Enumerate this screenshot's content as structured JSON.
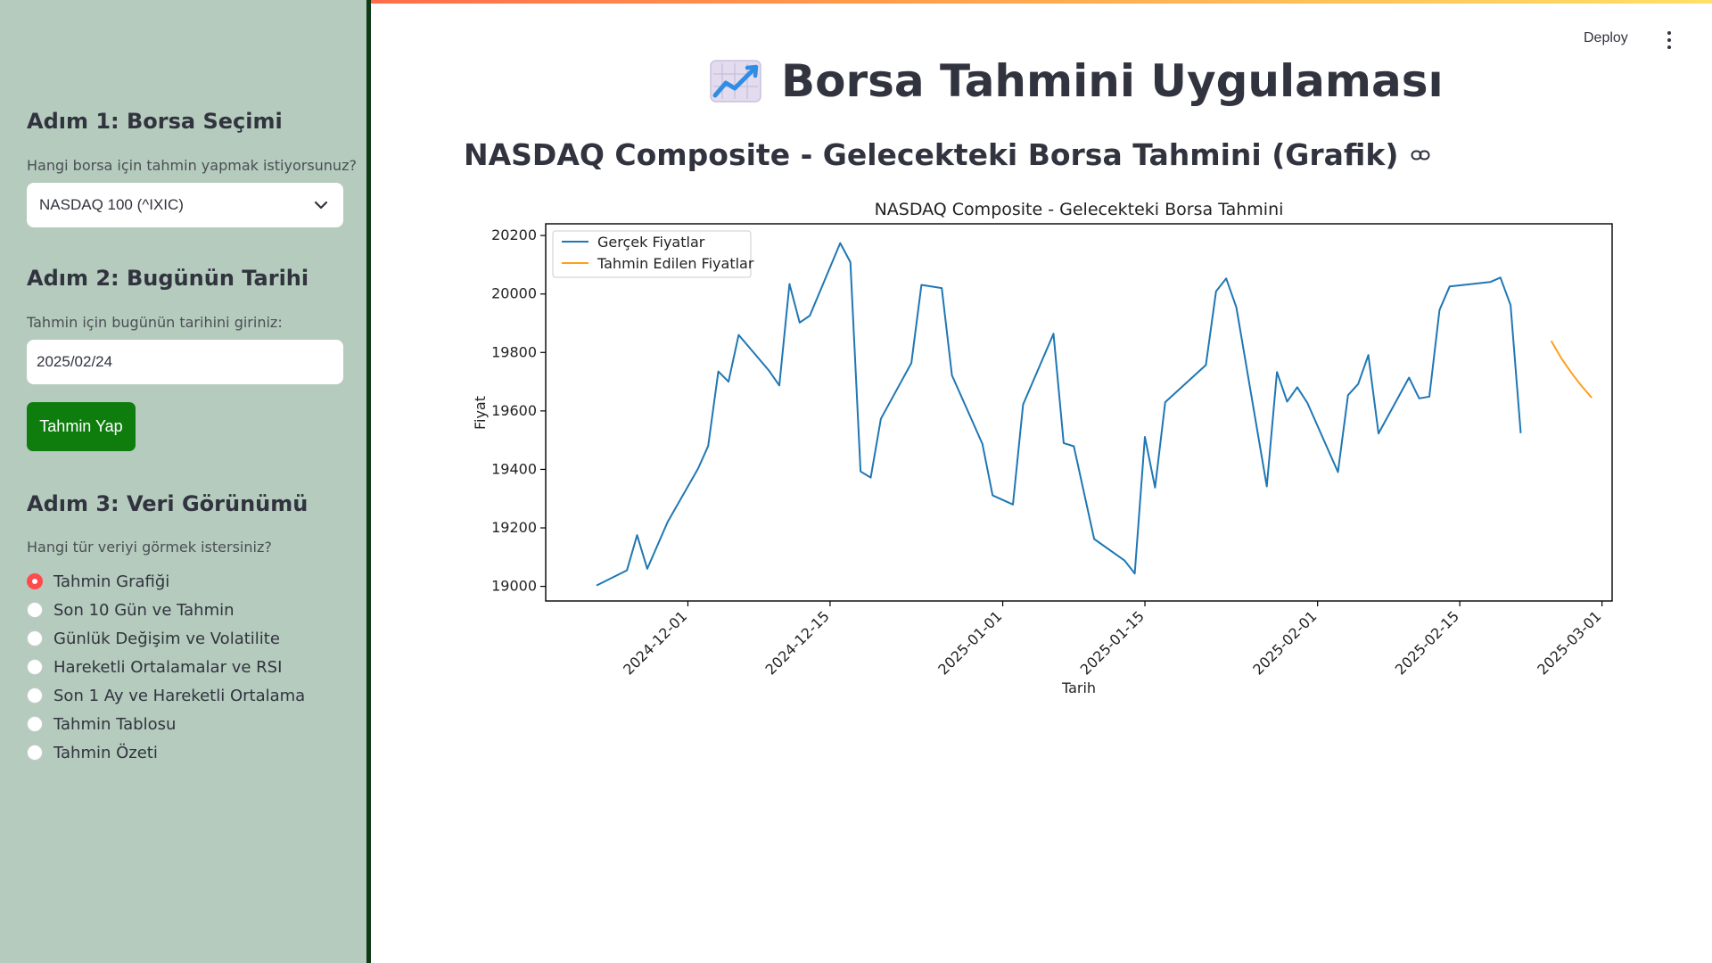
{
  "app": {
    "title": "Borsa Tahmini Uygulaması",
    "title_icon": "chart-increasing-icon",
    "deploy_label": "Deploy",
    "accent_color": "#ff4b4b"
  },
  "sidebar": {
    "step1": {
      "title": "Adım 1: Borsa Seçimi",
      "question": "Hangi borsa için tahmin yapmak istiyorsunuz?",
      "selected": "NASDAQ 100 (^IXIC)"
    },
    "step2": {
      "title": "Adım 2: Bugünün Tarihi",
      "question": "Tahmin için bugünün tarihini giriniz:",
      "date_value": "2025/02/24",
      "button_label": "Tahmin Yap"
    },
    "step3": {
      "title": "Adım 3: Veri Görünümü",
      "question": "Hangi tür veriyi görmek istersiniz?",
      "options": [
        "Tahmin Grafiği",
        "Son 10 Gün ve Tahmin",
        "Günlük Değişim ve Volatilite",
        "Hareketli Ortalamalar ve RSI",
        "Son 1 Ay ve Hareketli Ortalama",
        "Tahmin Tablosu",
        "Tahmin Özeti"
      ],
      "selected_index": 0
    }
  },
  "main": {
    "subheader": "NASDAQ Composite - Gelecekteki Borsa Tahmini (Grafik)"
  },
  "chart_data": {
    "type": "line",
    "title": "NASDAQ Composite - Gelecekteki Borsa Tahmini",
    "xlabel": "Tarih",
    "ylabel": "Fiyat",
    "ylim": [
      18950,
      20240
    ],
    "xlim": [
      "2024-11-17",
      "2025-03-02"
    ],
    "x_ticks": [
      "2024-12-01",
      "2024-12-15",
      "2025-01-01",
      "2025-01-15",
      "2025-02-01",
      "2025-02-15",
      "2025-03-01"
    ],
    "y_ticks": [
      19000,
      19200,
      19400,
      19600,
      19800,
      20000,
      20200
    ],
    "legend_position": "top-left",
    "grid": false,
    "series": [
      {
        "name": "Gerçek Fiyatlar",
        "color": "#1f77b4",
        "x": [
          "2024-11-22",
          "2024-11-25",
          "2024-11-26",
          "2024-11-27",
          "2024-11-29",
          "2024-12-02",
          "2024-12-03",
          "2024-12-04",
          "2024-12-05",
          "2024-12-06",
          "2024-12-09",
          "2024-12-10",
          "2024-12-11",
          "2024-12-12",
          "2024-12-13",
          "2024-12-16",
          "2024-12-17",
          "2024-12-18",
          "2024-12-19",
          "2024-12-20",
          "2024-12-23",
          "2024-12-24",
          "2024-12-26",
          "2024-12-27",
          "2024-12-30",
          "2024-12-31",
          "2025-01-02",
          "2025-01-03",
          "2025-01-06",
          "2025-01-07",
          "2025-01-08",
          "2025-01-10",
          "2025-01-13",
          "2025-01-14",
          "2025-01-15",
          "2025-01-16",
          "2025-01-17",
          "2025-01-21",
          "2025-01-22",
          "2025-01-23",
          "2025-01-24",
          "2025-01-27",
          "2025-01-28",
          "2025-01-29",
          "2025-01-30",
          "2025-01-31",
          "2025-02-03",
          "2025-02-04",
          "2025-02-05",
          "2025-02-06",
          "2025-02-07",
          "2025-02-10",
          "2025-02-11",
          "2025-02-12",
          "2025-02-13",
          "2025-02-14",
          "2025-02-18",
          "2025-02-19",
          "2025-02-20",
          "2025-02-21"
        ],
        "values": [
          19003,
          19055,
          19175,
          19060,
          19220,
          19403,
          19480,
          19735,
          19700,
          19860,
          19737,
          19687,
          20034,
          19902,
          19926,
          20174,
          20109,
          19393,
          19372,
          19573,
          19764,
          20031,
          20020,
          19722,
          19487,
          19311,
          19280,
          19622,
          19864,
          19490,
          19479,
          19162,
          19088,
          19044,
          19511,
          19338,
          19630,
          19757,
          20009,
          20053,
          19954,
          19342,
          19733,
          19632,
          19681,
          19627,
          19391,
          19654,
          19692,
          19791,
          19523,
          19714,
          19643,
          19649,
          19945,
          20026,
          20041,
          20056,
          19962,
          19524
        ]
      },
      {
        "name": "Tahmin Edilen Fiyatlar",
        "color": "#ff9f1c",
        "x": [
          "2025-02-24",
          "2025-02-25",
          "2025-02-26",
          "2025-02-27",
          "2025-02-28"
        ],
        "values": [
          19840,
          19780,
          19730,
          19685,
          19645
        ]
      }
    ]
  }
}
